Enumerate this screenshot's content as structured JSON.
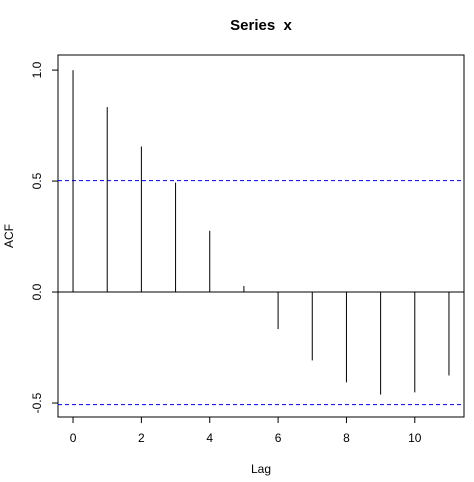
{
  "chart_data": {
    "type": "acf",
    "title": "Series  x",
    "x_label": "Lag",
    "y_label": "ACF",
    "x": [
      0,
      1,
      2,
      3,
      4,
      5,
      6,
      7,
      8,
      9,
      10,
      11
    ],
    "values": [
      1.0,
      0.833,
      0.656,
      0.493,
      0.276,
      0.027,
      -0.167,
      -0.308,
      -0.407,
      -0.462,
      -0.452,
      -0.376
    ],
    "color": "#000000",
    "ci_lines": [
      0.502,
      -0.507
    ],
    "ci_color": "#0000ff",
    "xlim": [
      -0.44,
      11.44
    ],
    "xticks": [
      0,
      2,
      4,
      6,
      8,
      10
    ],
    "ylim": [
      -0.563,
      1.068
    ],
    "yticks": [
      {
        "value": -0.5,
        "label": "-0.5"
      },
      {
        "value": 0,
        "label": "0.0"
      },
      {
        "value": 0.5,
        "label": "0.5"
      },
      {
        "value": 1,
        "label": "1.0"
      }
    ]
  }
}
